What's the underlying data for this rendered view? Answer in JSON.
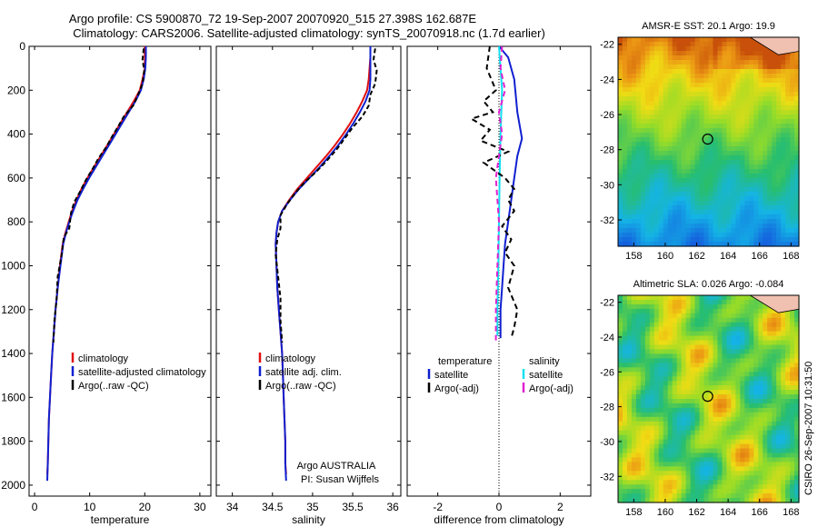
{
  "title": {
    "line1": "Argo profile: CS 5900870_72 19-Sep-2007 20070920_515 27.398S 162.687E",
    "line2": "Climatology: CARS2006. Satellite-adjusted climatology: synTS_20070918.nc (1.7d earlier)"
  },
  "side_label": "CSIRO 26-Sep-2007 10:31:50",
  "credit": {
    "line1": "Argo AUSTRALIA",
    "line2": "PI: Susan Wijffels"
  },
  "colors": {
    "climatology": "#e01010",
    "satellite": "#1020d0",
    "argo": "#000000",
    "sat_salinity": "#10e0f0",
    "argo_salinity": "#e020d0",
    "land": "#f0c0b0"
  },
  "chart_data": [
    {
      "type": "line",
      "id": "temperature",
      "xlabel": "temperature",
      "xlim": [
        -1,
        32
      ],
      "ylim": [
        2050,
        0
      ],
      "xticks": [
        0,
        10,
        20,
        30
      ],
      "yticks": [
        0,
        200,
        400,
        600,
        800,
        1000,
        1200,
        1400,
        1600,
        1800,
        2000
      ],
      "legend": [
        "climatology",
        "satellite-adjusted climatology",
        "Argo(..raw -QC)"
      ],
      "series": [
        {
          "name": "climatology",
          "color": "#e01010",
          "dash": "",
          "points": [
            [
              20,
              0
            ],
            [
              20,
              50
            ],
            [
              20,
              100
            ],
            [
              19.6,
              150
            ],
            [
              19.1,
              200
            ],
            [
              18,
              250
            ],
            [
              16.8,
              300
            ],
            [
              15.6,
              350
            ],
            [
              14.4,
              400
            ],
            [
              13.2,
              450
            ],
            [
              12,
              500
            ],
            [
              10.8,
              550
            ],
            [
              9.6,
              600
            ],
            [
              8.5,
              650
            ],
            [
              7.6,
              700
            ],
            [
              6.8,
              750
            ],
            [
              6.2,
              800
            ],
            [
              5.6,
              850
            ],
            [
              5.1,
              900
            ],
            [
              4.6,
              1000
            ],
            [
              4.2,
              1100
            ],
            [
              3.8,
              1200
            ],
            [
              3.5,
              1300
            ],
            [
              3.2,
              1400
            ],
            [
              3,
              1500
            ],
            [
              2.8,
              1600
            ],
            [
              2.6,
              1700
            ],
            [
              2.5,
              1800
            ],
            [
              2.4,
              1900
            ],
            [
              2.3,
              1950
            ]
          ]
        },
        {
          "name": "satellite-adjusted climatology",
          "color": "#1020d0",
          "dash": "",
          "points": [
            [
              20.2,
              0
            ],
            [
              20.2,
              50
            ],
            [
              20.1,
              100
            ],
            [
              19.8,
              150
            ],
            [
              19.3,
              200
            ],
            [
              18.3,
              250
            ],
            [
              17.1,
              300
            ],
            [
              15.9,
              350
            ],
            [
              14.7,
              400
            ],
            [
              13.5,
              450
            ],
            [
              12.3,
              500
            ],
            [
              11.1,
              550
            ],
            [
              9.9,
              600
            ],
            [
              8.8,
              650
            ],
            [
              7.8,
              700
            ],
            [
              7,
              750
            ],
            [
              6.3,
              800
            ],
            [
              5.7,
              850
            ],
            [
              5.2,
              900
            ],
            [
              4.7,
              1000
            ],
            [
              4.2,
              1100
            ],
            [
              3.8,
              1200
            ],
            [
              3.5,
              1300
            ],
            [
              3.2,
              1400
            ],
            [
              3,
              1500
            ],
            [
              2.8,
              1600
            ],
            [
              2.6,
              1700
            ],
            [
              2.5,
              1800
            ],
            [
              2.4,
              1900
            ],
            [
              2.3,
              1980
            ]
          ]
        },
        {
          "name": "Argo(..raw -QC)",
          "color": "#000000",
          "dash": "5,3",
          "points": [
            [
              19.8,
              10
            ],
            [
              19.6,
              60
            ],
            [
              19.9,
              110
            ],
            [
              19.6,
              170
            ],
            [
              18.8,
              220
            ],
            [
              17.9,
              270
            ],
            [
              16.2,
              320
            ],
            [
              15.3,
              360
            ],
            [
              14.1,
              410
            ],
            [
              13,
              460
            ],
            [
              11.6,
              510
            ],
            [
              10.5,
              560
            ],
            [
              9.3,
              610
            ],
            [
              8.3,
              660
            ],
            [
              7.2,
              710
            ],
            [
              6.6,
              760
            ],
            [
              6.3,
              830
            ],
            [
              5.3,
              870
            ],
            [
              4.9,
              950
            ],
            [
              4.2,
              1050
            ],
            [
              4,
              1150
            ],
            [
              3.6,
              1250
            ],
            [
              3.4,
              1350
            ]
          ]
        }
      ]
    },
    {
      "type": "line",
      "id": "salinity",
      "xlabel": "salinity",
      "xlim": [
        33.8,
        36.1
      ],
      "ylim": [
        2050,
        0
      ],
      "xticks": [
        34,
        34.5,
        35,
        35.5,
        36
      ],
      "legend": [
        "climatology",
        "satellite adj. clim.",
        "Argo(..raw -QC)"
      ],
      "series": [
        {
          "name": "climatology",
          "color": "#e01010",
          "dash": "",
          "points": [
            [
              35.72,
              0
            ],
            [
              35.72,
              50
            ],
            [
              35.71,
              100
            ],
            [
              35.7,
              150
            ],
            [
              35.68,
              200
            ],
            [
              35.62,
              250
            ],
            [
              35.55,
              300
            ],
            [
              35.47,
              350
            ],
            [
              35.38,
              400
            ],
            [
              35.28,
              450
            ],
            [
              35.17,
              500
            ],
            [
              35.05,
              550
            ],
            [
              34.93,
              600
            ],
            [
              34.81,
              650
            ],
            [
              34.71,
              700
            ],
            [
              34.62,
              750
            ],
            [
              34.57,
              800
            ],
            [
              34.55,
              850
            ],
            [
              34.54,
              900
            ],
            [
              34.55,
              1000
            ],
            [
              34.56,
              1100
            ],
            [
              34.58,
              1200
            ],
            [
              34.6,
              1300
            ],
            [
              34.62,
              1400
            ],
            [
              34.63,
              1500
            ],
            [
              34.64,
              1600
            ],
            [
              34.65,
              1700
            ],
            [
              34.66,
              1800
            ],
            [
              34.66,
              1900
            ],
            [
              34.67,
              1950
            ]
          ]
        },
        {
          "name": "satellite adj. clim.",
          "color": "#1020d0",
          "dash": "",
          "points": [
            [
              35.72,
              0
            ],
            [
              35.72,
              50
            ],
            [
              35.72,
              100
            ],
            [
              35.72,
              150
            ],
            [
              35.71,
              200
            ],
            [
              35.66,
              250
            ],
            [
              35.59,
              300
            ],
            [
              35.51,
              350
            ],
            [
              35.42,
              400
            ],
            [
              35.32,
              450
            ],
            [
              35.21,
              500
            ],
            [
              35.09,
              550
            ],
            [
              34.96,
              600
            ],
            [
              34.83,
              650
            ],
            [
              34.72,
              700
            ],
            [
              34.62,
              750
            ],
            [
              34.57,
              800
            ],
            [
              34.55,
              850
            ],
            [
              34.54,
              900
            ],
            [
              34.55,
              1000
            ],
            [
              34.56,
              1100
            ],
            [
              34.58,
              1200
            ],
            [
              34.6,
              1300
            ],
            [
              34.62,
              1400
            ],
            [
              34.63,
              1500
            ],
            [
              34.64,
              1600
            ],
            [
              34.65,
              1700
            ],
            [
              34.66,
              1800
            ],
            [
              34.66,
              1900
            ],
            [
              34.67,
              1980
            ]
          ]
        },
        {
          "name": "Argo(..raw -QC)",
          "color": "#000000",
          "dash": "5,3",
          "points": [
            [
              35.78,
              10
            ],
            [
              35.76,
              60
            ],
            [
              35.8,
              110
            ],
            [
              35.78,
              170
            ],
            [
              35.72,
              220
            ],
            [
              35.7,
              270
            ],
            [
              35.62,
              320
            ],
            [
              35.5,
              370
            ],
            [
              35.4,
              420
            ],
            [
              35.3,
              470
            ],
            [
              35.18,
              520
            ],
            [
              35.05,
              570
            ],
            [
              34.9,
              620
            ],
            [
              34.78,
              670
            ],
            [
              34.68,
              720
            ],
            [
              34.6,
              770
            ],
            [
              34.6,
              830
            ],
            [
              34.56,
              880
            ],
            [
              34.54,
              950
            ],
            [
              34.57,
              1050
            ],
            [
              34.6,
              1150
            ],
            [
              34.6,
              1250
            ],
            [
              34.62,
              1350
            ]
          ]
        }
      ]
    },
    {
      "type": "line",
      "id": "difference",
      "xlabel": "difference from climatology",
      "xlim": [
        -3,
        3
      ],
      "ylim": [
        2050,
        0
      ],
      "xticks": [
        -2,
        0,
        2
      ],
      "legend_left": {
        "heading": "temperature",
        "items": [
          "satellite",
          "Argo(-adj)"
        ]
      },
      "legend_right": {
        "heading": "salinity",
        "items": [
          "satellite",
          "Argo(-adj)"
        ]
      },
      "series": [
        {
          "name": "satellite",
          "group": "temperature",
          "color": "#1020d0",
          "dash": "",
          "points": [
            [
              0,
              0
            ],
            [
              0.3,
              50
            ],
            [
              0.5,
              150
            ],
            [
              0.6,
              300
            ],
            [
              0.75,
              420
            ],
            [
              0.6,
              500
            ],
            [
              0.5,
              600
            ],
            [
              0.4,
              700
            ],
            [
              0.3,
              800
            ],
            [
              0.2,
              900
            ],
            [
              0.15,
              1000
            ],
            [
              0.1,
              1100
            ],
            [
              0.05,
              1200
            ],
            [
              0.05,
              1330
            ]
          ]
        },
        {
          "name": "satellite",
          "group": "salinity",
          "color": "#10e0f0",
          "dash": "",
          "points": [
            [
              0,
              0
            ],
            [
              0.05,
              100
            ],
            [
              0.1,
              200
            ],
            [
              0.05,
              400
            ],
            [
              0.02,
              600
            ],
            [
              0,
              800
            ],
            [
              -0.02,
              1000
            ],
            [
              -0.05,
              1200
            ],
            [
              -0.05,
              1320
            ]
          ]
        },
        {
          "name": "Argo(-adj)",
          "group": "temperature",
          "color": "#000000",
          "dash": "6,4",
          "points": [
            [
              -0.3,
              0
            ],
            [
              -0.4,
              100
            ],
            [
              -0.1,
              200
            ],
            [
              -0.5,
              250
            ],
            [
              -0.2,
              300
            ],
            [
              -0.9,
              330
            ],
            [
              -0.3,
              380
            ],
            [
              -0.6,
              430
            ],
            [
              0.3,
              480
            ],
            [
              -0.5,
              530
            ],
            [
              0.2,
              600
            ],
            [
              0.5,
              650
            ],
            [
              0.3,
              700
            ],
            [
              0.5,
              750
            ],
            [
              0.1,
              820
            ],
            [
              0.4,
              880
            ],
            [
              0.2,
              940
            ],
            [
              0.5,
              1000
            ],
            [
              0.3,
              1100
            ],
            [
              0.6,
              1200
            ],
            [
              0.5,
              1280
            ],
            [
              0.4,
              1330
            ]
          ]
        },
        {
          "name": "Argo(-adj)",
          "group": "salinity",
          "color": "#e020d0",
          "dash": "6,4",
          "points": [
            [
              0.1,
              0
            ],
            [
              0.05,
              100
            ],
            [
              0.2,
              200
            ],
            [
              0,
              300
            ],
            [
              0.1,
              400
            ],
            [
              -0.1,
              600
            ],
            [
              0,
              800
            ],
            [
              -0.05,
              1000
            ],
            [
              -0.1,
              1200
            ],
            [
              -0.1,
              1350
            ]
          ]
        }
      ]
    },
    {
      "type": "heatmap",
      "id": "sst",
      "title": "AMSR-E SST: 20.1  Argo: 19.9",
      "xlim": [
        157,
        168.5
      ],
      "ylim": [
        -33.5,
        -21.6
      ],
      "xticks": [
        158,
        160,
        162,
        164,
        166,
        168
      ],
      "yticks": [
        -22,
        -24,
        -26,
        -28,
        -30,
        -32
      ],
      "marker": [
        162.7,
        -27.4
      ]
    },
    {
      "type": "heatmap",
      "id": "sla",
      "title": "Altimetric SLA: 0.026  Argo: -0.084",
      "xlim": [
        157,
        168.5
      ],
      "ylim": [
        -33.5,
        -21.6
      ],
      "xticks": [
        158,
        160,
        162,
        164,
        166,
        168
      ],
      "yticks": [
        -22,
        -24,
        -26,
        -28,
        -30,
        -32
      ],
      "marker": [
        162.7,
        -27.4
      ]
    }
  ]
}
